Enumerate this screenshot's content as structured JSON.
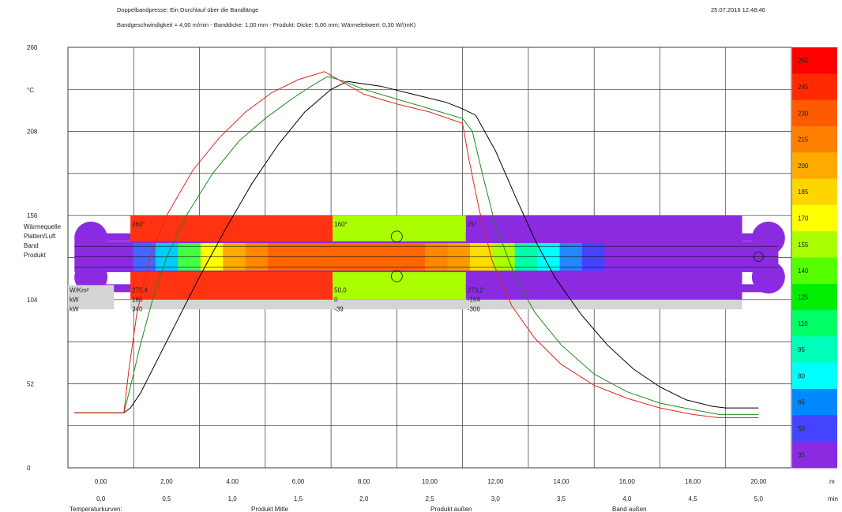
{
  "header": {
    "title": "Doppelbandpresse:  Ein Durchlauf über die Bandlänge",
    "subtitle": "Bandgeschwindigkeit = 4,00 m/min - Banddicke: 1,00 mm - Produkt: Dicke: 5,00 mm; Wärmeleitwert: 0,30 W/(mK)",
    "timestamp": "25.07.2016 12:48:46"
  },
  "chart_data": {
    "type": "line",
    "ylabel": "°C",
    "ylim": [
      0,
      260
    ],
    "y_ticks": [
      {
        "value": 0,
        "label": "0"
      },
      {
        "value": 52,
        "label": "52"
      },
      {
        "value": 104,
        "label": "104"
      },
      {
        "value": 156,
        "label": "156"
      },
      {
        "value": 208,
        "label": "208"
      },
      {
        "value": 260,
        "label": "260"
      }
    ],
    "xlim": [
      -1,
      21
    ],
    "x_ticks": [
      0,
      2,
      4,
      6,
      8,
      10,
      12,
      14,
      16,
      18,
      20
    ],
    "x_tick_labels": [
      "0,00",
      "2,00",
      "4,00",
      "6,00",
      "8,00",
      "10,00",
      "12,00",
      "14,00",
      "16,00",
      "18,00",
      "20,00"
    ],
    "x_unit": "m",
    "time_tick_labels": [
      "0,0",
      "0,5",
      "1,0",
      "1,5",
      "2,0",
      "2,5",
      "3,0",
      "3,5",
      "4,0",
      "4,5",
      "5,0"
    ],
    "time_unit": "min",
    "legend_title": "Temperaturkurven:",
    "series": [
      {
        "name": "Produkt Mitte",
        "color": "#000000",
        "points": [
          [
            -0.8,
            34
          ],
          [
            0.7,
            34
          ],
          [
            0.9,
            37
          ],
          [
            1.2,
            46
          ],
          [
            1.6,
            62
          ],
          [
            2.2,
            86
          ],
          [
            3.0,
            118
          ],
          [
            3.8,
            148
          ],
          [
            4.6,
            176
          ],
          [
            5.4,
            200
          ],
          [
            6.2,
            220
          ],
          [
            7.0,
            234
          ],
          [
            7.5,
            239
          ],
          [
            7.8,
            238
          ],
          [
            8.5,
            236
          ],
          [
            9.5,
            231
          ],
          [
            10.5,
            226
          ],
          [
            11.0,
            222
          ],
          [
            11.4,
            218
          ],
          [
            12.0,
            196
          ],
          [
            12.6,
            168
          ],
          [
            13.2,
            141
          ],
          [
            13.8,
            118
          ],
          [
            14.6,
            95
          ],
          [
            15.4,
            76
          ],
          [
            16.2,
            61
          ],
          [
            17.0,
            50
          ],
          [
            17.8,
            42
          ],
          [
            18.6,
            38
          ],
          [
            19.0,
            37
          ],
          [
            20.0,
            37
          ]
        ]
      },
      {
        "name": "Produkt außen",
        "color": "#1e8c1e",
        "points": [
          [
            -0.8,
            34
          ],
          [
            0.7,
            34
          ],
          [
            0.9,
            50
          ],
          [
            1.2,
            76
          ],
          [
            1.6,
            106
          ],
          [
            2.0,
            130
          ],
          [
            2.6,
            156
          ],
          [
            3.4,
            182
          ],
          [
            4.2,
            202
          ],
          [
            5.0,
            216
          ],
          [
            5.8,
            228
          ],
          [
            6.4,
            236
          ],
          [
            6.9,
            242
          ],
          [
            7.4,
            239
          ],
          [
            8.0,
            234
          ],
          [
            9.0,
            228
          ],
          [
            10.0,
            222
          ],
          [
            11.0,
            216
          ],
          [
            11.3,
            208
          ],
          [
            11.6,
            182
          ],
          [
            12.0,
            150
          ],
          [
            12.6,
            118
          ],
          [
            13.2,
            96
          ],
          [
            14.0,
            76
          ],
          [
            15.0,
            58
          ],
          [
            16.0,
            47
          ],
          [
            17.0,
            40
          ],
          [
            18.0,
            36
          ],
          [
            18.8,
            33
          ],
          [
            20.0,
            33
          ]
        ]
      },
      {
        "name": "Band außen",
        "color": "#e8241e",
        "points": [
          [
            -0.8,
            34
          ],
          [
            0.7,
            34
          ],
          [
            0.85,
            60
          ],
          [
            1.1,
            96
          ],
          [
            1.5,
            130
          ],
          [
            2.0,
            156
          ],
          [
            2.8,
            184
          ],
          [
            3.6,
            204
          ],
          [
            4.4,
            220
          ],
          [
            5.2,
            232
          ],
          [
            6.0,
            240
          ],
          [
            6.8,
            245
          ],
          [
            7.4,
            238
          ],
          [
            8.0,
            231
          ],
          [
            9.0,
            225
          ],
          [
            10.0,
            220
          ],
          [
            11.0,
            213
          ],
          [
            11.2,
            190
          ],
          [
            11.5,
            160
          ],
          [
            11.9,
            128
          ],
          [
            12.5,
            100
          ],
          [
            13.2,
            80
          ],
          [
            14.0,
            64
          ],
          [
            15.0,
            51
          ],
          [
            16.0,
            43
          ],
          [
            17.0,
            37
          ],
          [
            18.0,
            33
          ],
          [
            18.8,
            31
          ],
          [
            20.0,
            31
          ]
        ]
      }
    ]
  },
  "legend_scale": {
    "labels": [
      "260",
      "245",
      "230",
      "215",
      "200",
      "185",
      "170",
      "155",
      "140",
      "125",
      "110",
      "95",
      "80",
      "65",
      "50",
      "35"
    ],
    "colors": [
      "#ff0000",
      "#ff2a00",
      "#ff5a00",
      "#ff8000",
      "#ffaa00",
      "#ffd500",
      "#ffff00",
      "#aaff00",
      "#55ff00",
      "#00ee00",
      "#00ff66",
      "#00ffbb",
      "#00ffff",
      "#0088ff",
      "#4444ff",
      "#8a2be2"
    ]
  },
  "press": {
    "row_labels": [
      "Wärmequelle",
      "Platten/Luft",
      "Band",
      "Produkt"
    ],
    "zones": [
      {
        "temp": "260°",
        "color": "#ff3311",
        "heat_flux": "275,4",
        "power": "180",
        "total": "340"
      },
      {
        "temp": "160°",
        "color": "#aaff00",
        "heat_flux": "50,0",
        "power": "0",
        "total": "-39"
      },
      {
        "temp": "25°",
        "color": "#8a2be2",
        "heat_flux": "273,2",
        "power": "-164",
        "total": "-306"
      }
    ],
    "unit_labels": [
      "W/Km²",
      "kW",
      "kW"
    ],
    "strip_colors": [
      "#8a2be2",
      "#4466ff",
      "#00ccff",
      "#44ff44",
      "#ffff00",
      "#ffaa00",
      "#ff8800",
      "#ff6600",
      "#ff6600",
      "#ff6600",
      "#ff6600",
      "#ff6600",
      "#ff6600",
      "#ff6600",
      "#ff8800",
      "#ff9900",
      "#ffdd00",
      "#aaff00",
      "#00ffaa",
      "#00ffff",
      "#2288ff",
      "#4444ff",
      "#8a2be2"
    ]
  }
}
